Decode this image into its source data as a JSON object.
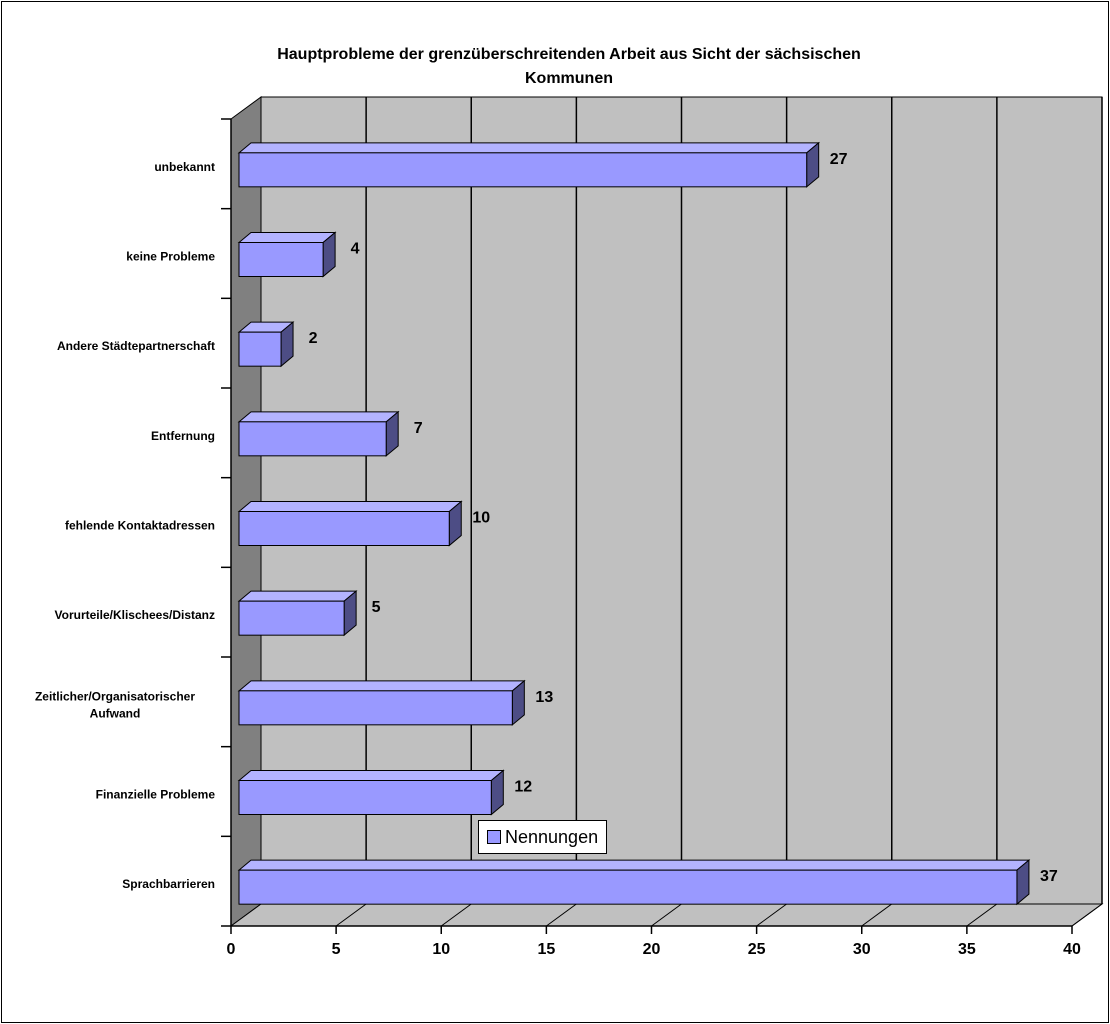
{
  "chart_data": {
    "type": "bar",
    "orientation": "horizontal",
    "style": "3d",
    "title_lines": [
      "Hauptprobleme der grenzüberschreitenden Arbeit aus Sicht der sächsischen",
      "Kommunen"
    ],
    "categories": [
      [
        "Sprachbarrieren"
      ],
      [
        "Finanzielle Probleme"
      ],
      [
        "Zeitlicher/Organisatorischer",
        "Aufwand"
      ],
      [
        "Vorurteile/Klischees/Distanz"
      ],
      [
        "fehlende Kontaktadressen"
      ],
      [
        "Entfernung"
      ],
      [
        "Andere Städtepartnerschaft"
      ],
      [
        "keine Probleme"
      ],
      [
        "unbekannt"
      ]
    ],
    "series": [
      {
        "name": "Nennungen",
        "values": [
          37,
          12,
          13,
          5,
          10,
          7,
          2,
          4,
          27
        ]
      }
    ],
    "xlim": [
      0,
      40
    ],
    "x_ticks": [
      0,
      5,
      10,
      15,
      20,
      25,
      30,
      35,
      40
    ],
    "grid": true,
    "legend": "bottom-center",
    "colors": {
      "bar_front": "#9999ff",
      "bar_top": "#b3b3ff",
      "bar_side": "#4d4d85",
      "wall": "#c0c0c0",
      "side_wall": "#808080",
      "floor": "#c0c0c0"
    }
  }
}
